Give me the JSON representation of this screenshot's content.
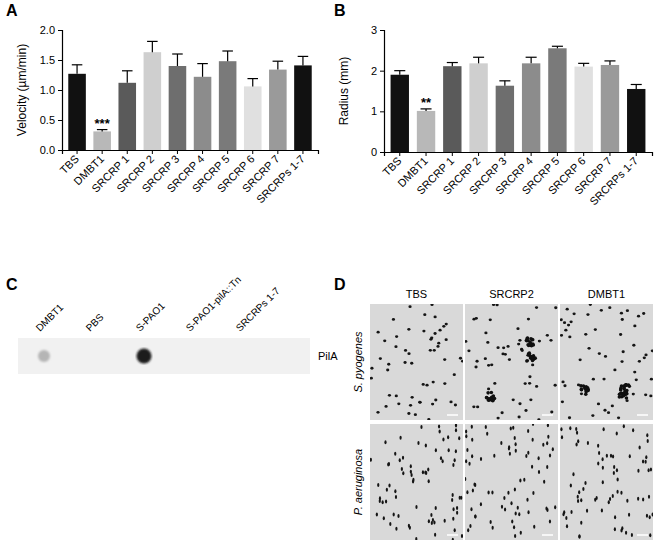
{
  "panel_labels": [
    "A",
    "B",
    "C",
    "D"
  ],
  "chart_data": [
    {
      "type": "bar",
      "y_label": "Velocity (µm/min)",
      "categories": [
        "TBS",
        "DMBT1",
        "SRCRP 1",
        "SRCRP 2",
        "SRCRP 3",
        "SRCRP 4",
        "SRCRP 5",
        "SRCRP 6",
        "SRCRP 7",
        "SRCRPs 1-7"
      ],
      "values": [
        1.27,
        0.31,
        1.12,
        1.63,
        1.4,
        1.22,
        1.48,
        1.06,
        1.34,
        1.41
      ],
      "errors": [
        0.15,
        0.03,
        0.2,
        0.18,
        0.2,
        0.22,
        0.17,
        0.13,
        0.14,
        0.15
      ],
      "colors": [
        "#111111",
        "#b8b8b8",
        "#5a5a5a",
        "#cfcfcf",
        "#6e6e6e",
        "#8c8c8c",
        "#7a7a7a",
        "#e0e0e0",
        "#9a9a9a",
        "#111111"
      ],
      "ylim": [
        0,
        2
      ],
      "yticks": [
        {
          "value": 0,
          "label": "0.0"
        },
        {
          "value": 0.5,
          "label": "0.5"
        },
        {
          "value": 1,
          "label": "1.0"
        },
        {
          "value": 1.5,
          "label": "1.5"
        },
        {
          "value": 2,
          "label": "2.0"
        }
      ],
      "annotations": [
        {
          "text": "***",
          "x": "DMBT1"
        }
      ]
    },
    {
      "type": "bar",
      "y_label": "Radius (mm)",
      "categories": [
        "TBS",
        "DMBT1",
        "SRCRP 1",
        "SRCRP 2",
        "SRCRP 3",
        "SRCRP 4",
        "SRCRP 5",
        "SRCRP 6",
        "SRCRP 7",
        "SRCRPs 1-7"
      ],
      "values": [
        1.9,
        1.01,
        2.11,
        2.18,
        1.63,
        2.18,
        2.55,
        2.1,
        2.14,
        1.55
      ],
      "errors": [
        0.1,
        0.05,
        0.09,
        0.15,
        0.12,
        0.15,
        0.05,
        0.08,
        0.1,
        0.11
      ],
      "colors": [
        "#111111",
        "#b8b8b8",
        "#5a5a5a",
        "#cfcfcf",
        "#6e6e6e",
        "#8c8c8c",
        "#7a7a7a",
        "#e0e0e0",
        "#9a9a9a",
        "#111111"
      ],
      "ylim": [
        0,
        3
      ],
      "yticks": [
        0,
        1,
        2,
        3
      ],
      "annotations": [
        {
          "text": "**",
          "x": "DMBT1"
        }
      ]
    }
  ],
  "dot_blot": {
    "lanes": [
      "DMBT1",
      "PBS",
      "S-PAO1",
      "S-PAO1-pilA::Tn",
      "SRCRPs 1-7"
    ],
    "protein": "PilA"
  },
  "micrographs": {
    "columns": [
      "TBS",
      "SRCRP2",
      "DMBT1"
    ],
    "rows": [
      "S. pyogenes",
      "P. aeruginosa"
    ]
  }
}
